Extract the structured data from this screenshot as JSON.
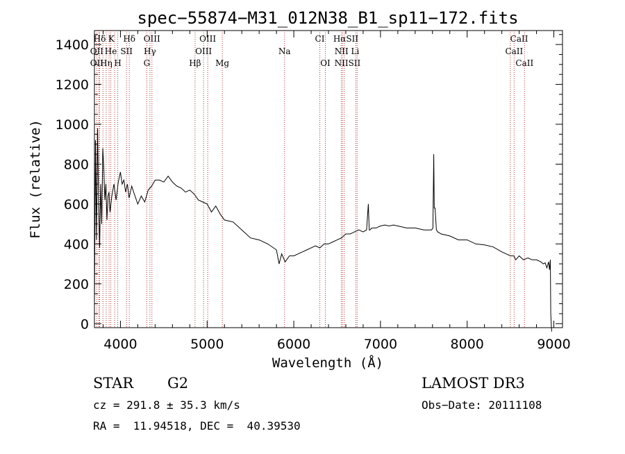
{
  "chart_data": {
    "type": "line",
    "title": "spec−55874−M31_012N38_B1_sp11−172.fits",
    "xlabel": "Wavelength (Å)",
    "ylabel": "Flux (relative)",
    "xlim": [
      3700,
      9100
    ],
    "ylim": [
      -20,
      1470
    ],
    "xticks": [
      4000,
      5000,
      6000,
      7000,
      8000,
      9000
    ],
    "yticks": [
      0,
      200,
      400,
      600,
      800,
      1000,
      1200,
      1400
    ],
    "grid": false,
    "line_color": "#000000",
    "marker_color": "#b03030",
    "series": [
      {
        "x": [
          3700,
          3712,
          3724,
          3736,
          3748,
          3760,
          3772,
          3784,
          3796,
          3808,
          3820,
          3832,
          3844,
          3856,
          3868,
          3880,
          3900,
          3925,
          3950,
          3975,
          4000,
          4020,
          4040,
          4060,
          4080,
          4100,
          4130,
          4160,
          4200,
          4240,
          4280,
          4320,
          4360,
          4400,
          4450,
          4500,
          4550,
          4600,
          4650,
          4700,
          4750,
          4800,
          4850,
          4900,
          4950,
          5000,
          5050,
          5100,
          5150,
          5200,
          5300,
          5400,
          5500,
          5600,
          5700,
          5800,
          5830,
          5860,
          5900,
          5950,
          6000,
          6050,
          6100,
          6150,
          6200,
          6250,
          6300,
          6350,
          6400,
          6450,
          6500,
          6550,
          6600,
          6650,
          6700,
          6750,
          6800,
          6840,
          6860,
          6870,
          6880,
          6900,
          6950,
          7000,
          7050,
          7100,
          7150,
          7200,
          7300,
          7400,
          7500,
          7560,
          7590,
          7605,
          7615,
          7620,
          7630,
          7645,
          7660,
          7700,
          7800,
          7900,
          8000,
          8100,
          8200,
          8300,
          8400,
          8450,
          8500,
          8540,
          8560,
          8600,
          8650,
          8700,
          8750,
          8800,
          8850,
          8880,
          8900,
          8920,
          8940,
          8950,
          8960,
          8965,
          8970,
          8975
        ],
        "y": [
          100,
          920,
          420,
          980,
          600,
          380,
          700,
          500,
          880,
          780,
          620,
          700,
          520,
          640,
          660,
          560,
          640,
          700,
          620,
          710,
          760,
          700,
          720,
          660,
          700,
          630,
          690,
          650,
          600,
          640,
          610,
          670,
          690,
          720,
          720,
          710,
          740,
          710,
          690,
          680,
          660,
          670,
          650,
          620,
          610,
          600,
          560,
          590,
          550,
          520,
          510,
          470,
          430,
          420,
          400,
          370,
          300,
          350,
          310,
          340,
          340,
          350,
          360,
          370,
          380,
          390,
          380,
          400,
          400,
          410,
          420,
          430,
          450,
          450,
          460,
          470,
          460,
          470,
          600,
          470,
          470,
          480,
          480,
          490,
          495,
          490,
          495,
          490,
          480,
          480,
          470,
          470,
          470,
          480,
          850,
          580,
          580,
          470,
          460,
          450,
          440,
          420,
          420,
          400,
          395,
          385,
          360,
          350,
          340,
          340,
          320,
          340,
          320,
          330,
          320,
          320,
          310,
          300,
          305,
          280,
          310,
          270,
          320,
          50,
          0,
          -40
        ]
      }
    ],
    "line_markers": [
      {
        "label": "Hδ",
        "row": 0,
        "x": 3760
      },
      {
        "label": "K",
        "row": 0,
        "x": 3895
      },
      {
        "label": "Hδ",
        "row": 0,
        "x": 4102
      },
      {
        "label": "OIII",
        "row": 0,
        "x": 4363
      },
      {
        "label": "OIII",
        "row": 0,
        "x": 5007
      },
      {
        "label": "CI",
        "row": 0,
        "x": 6300
      },
      {
        "label": "HαSII",
        "row": 0,
        "x": 6600
      },
      {
        "label": "CaII",
        "row": 0,
        "x": 8600
      },
      {
        "label": "OII",
        "row": 1,
        "x": 3727
      },
      {
        "label": "He",
        "row": 1,
        "x": 3889
      },
      {
        "label": "SII",
        "row": 1,
        "x": 4070
      },
      {
        "label": "Hγ",
        "row": 1,
        "x": 4340
      },
      {
        "label": "OIII",
        "row": 1,
        "x": 4959
      },
      {
        "label": "Na",
        "row": 1,
        "x": 5893
      },
      {
        "label": "NII",
        "row": 1,
        "x": 6550
      },
      {
        "label": "Li",
        "row": 1,
        "x": 6708
      },
      {
        "label": "CaII",
        "row": 1,
        "x": 8542
      },
      {
        "label": "OII",
        "row": 2,
        "x": 3727
      },
      {
        "label": "Hη",
        "row": 2,
        "x": 3835
      },
      {
        "label": "H",
        "row": 2,
        "x": 3969
      },
      {
        "label": "G",
        "row": 2,
        "x": 4304
      },
      {
        "label": "Hβ",
        "row": 2,
        "x": 4861
      },
      {
        "label": "Mg",
        "row": 2,
        "x": 5175
      },
      {
        "label": "OI",
        "row": 2,
        "x": 6364
      },
      {
        "label": "NIISII",
        "row": 2,
        "x": 6620
      },
      {
        "label": "CaII",
        "row": 2,
        "x": 8662
      }
    ],
    "line_positions": [
      3727,
      3750,
      3760,
      3798,
      3835,
      3869,
      3889,
      3933,
      3969,
      4070,
      4102,
      4304,
      4340,
      4363,
      4861,
      4959,
      5007,
      5175,
      5893,
      6300,
      6364,
      6548,
      6563,
      6583,
      6716,
      6731,
      8498,
      8542,
      8662
    ]
  },
  "info": {
    "object_class": "STAR",
    "subclass": "G2",
    "survey": "LAMOST DR3",
    "cz": "cz = 291.8 ± 35.3 km/s",
    "obs_date": "Obs−Date: 20111108",
    "coords": "RA =  11.94518, DEC =  40.39530"
  }
}
